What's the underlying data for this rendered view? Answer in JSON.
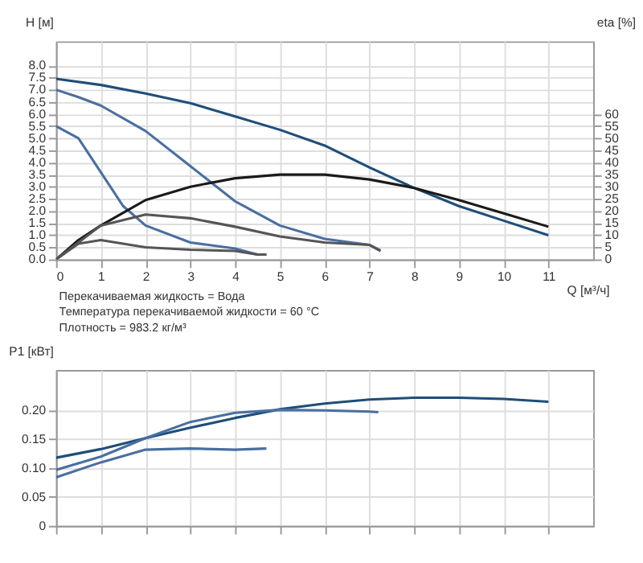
{
  "chart_data": [
    {
      "type": "line",
      "xlabel": "Q [м³/ч]",
      "ylabel": "H [м]",
      "y2label": "eta [%]",
      "xlim": [
        0,
        12
      ],
      "xticks": [
        0,
        1,
        2,
        3,
        4,
        5,
        6,
        7,
        8,
        9,
        10,
        11
      ],
      "ylim": [
        0,
        9
      ],
      "yticks": [
        {
          "value": 0,
          "label": "0.0"
        },
        0.5,
        {
          "value": 1,
          "label": "1.0"
        },
        1.5,
        {
          "value": 2,
          "label": "2.0"
        },
        2.5,
        {
          "value": 3,
          "label": "3.0"
        },
        3.5,
        {
          "value": 4,
          "label": "4.0"
        },
        4.5,
        {
          "value": 5,
          "label": "5.0"
        },
        5.5,
        {
          "value": 6,
          "label": "6.0"
        },
        6.5,
        {
          "value": 7,
          "label": "7.0"
        },
        7.5,
        {
          "value": 8,
          "label": "8.0"
        }
      ],
      "y2lim": [
        0,
        90
      ],
      "y2ticks": [
        0,
        5,
        10,
        15,
        20,
        25,
        30,
        35,
        40,
        45,
        50,
        55,
        60
      ],
      "grid": true,
      "legend": false,
      "marker": "none",
      "line_style": "solid",
      "annotations": [
        "Перекачиваемая жидкость = Вода",
        "Температура перекачиваемой жидкости = 60 °C",
        "Плотность = 983.2 кг/м³"
      ],
      "series": [
        {
          "color": "#1f4e79",
          "x": [
            0,
            1,
            2,
            3,
            4,
            5,
            6,
            7,
            8,
            9,
            10,
            11
          ],
          "values": [
            7.45,
            7.2,
            6.85,
            6.45,
            5.9,
            5.35,
            4.7,
            3.8,
            2.95,
            2.2,
            1.6,
            1.0
          ]
        },
        {
          "color": "#4a6fa0",
          "x": [
            0,
            0.5,
            1,
            2,
            3,
            4,
            5,
            6,
            7,
            7.25
          ],
          "values": [
            7.0,
            6.7,
            6.35,
            5.3,
            3.85,
            2.4,
            1.4,
            0.85,
            0.6,
            0.37
          ]
        },
        {
          "color": "#4a6fa0",
          "x": [
            0,
            0.5,
            1,
            1.5,
            2,
            3,
            4,
            4.5,
            4.7
          ],
          "values": [
            5.5,
            5.0,
            3.6,
            2.2,
            1.4,
            0.7,
            0.45,
            0.2,
            0.2
          ]
        },
        {
          "color": "#1a1a1a",
          "axis": "y2",
          "x": [
            0,
            0.5,
            1,
            2,
            3,
            4,
            5,
            6,
            7,
            8,
            9,
            10,
            11
          ],
          "values": [
            0,
            8,
            14,
            24.5,
            30,
            33.5,
            35,
            35,
            33,
            29.5,
            24.5,
            19,
            13.5
          ]
        },
        {
          "color": "#555555",
          "axis": "y2",
          "x": [
            0,
            0.5,
            1,
            2,
            3,
            4,
            5,
            6,
            7,
            7.25
          ],
          "values": [
            0,
            7,
            14,
            18.5,
            17,
            13.5,
            9.5,
            7,
            6,
            3.5
          ]
        },
        {
          "color": "#555555",
          "axis": "y2",
          "x": [
            0,
            0.5,
            1,
            2,
            3,
            4,
            4.5,
            4.7
          ],
          "values": [
            0,
            6.5,
            8,
            5,
            4,
            3.5,
            2,
            2
          ]
        }
      ]
    },
    {
      "type": "line",
      "ylabel": "P1 [кВт]",
      "xlim": [
        0,
        12
      ],
      "xticks": [
        0,
        1,
        2,
        3,
        4,
        5,
        6,
        7,
        8,
        9,
        10,
        11
      ],
      "ylim": [
        0,
        0.27
      ],
      "yticks": [
        0,
        0.05,
        {
          "value": 0.1,
          "label": "0.10"
        },
        0.15,
        {
          "value": 0.2,
          "label": "0.20"
        }
      ],
      "tick_labels": "y",
      "grid": true,
      "legend": false,
      "marker": "none",
      "line_style": "solid",
      "series": [
        {
          "color": "#1f4e79",
          "x": [
            0,
            1,
            2,
            3,
            4,
            5,
            6,
            7,
            8,
            9,
            10,
            11
          ],
          "values": [
            0.118,
            0.133,
            0.152,
            0.17,
            0.187,
            0.202,
            0.212,
            0.219,
            0.222,
            0.222,
            0.22,
            0.215
          ]
        },
        {
          "color": "#4a6fa0",
          "x": [
            0,
            1,
            2,
            3,
            4,
            5,
            6,
            7,
            7.2
          ],
          "values": [
            0.097,
            0.12,
            0.152,
            0.18,
            0.196,
            0.201,
            0.2,
            0.198,
            0.197
          ]
        },
        {
          "color": "#4a6fa0",
          "x": [
            0,
            1,
            2,
            3,
            4,
            4.7
          ],
          "values": [
            0.084,
            0.11,
            0.132,
            0.134,
            0.132,
            0.134
          ]
        }
      ]
    }
  ]
}
